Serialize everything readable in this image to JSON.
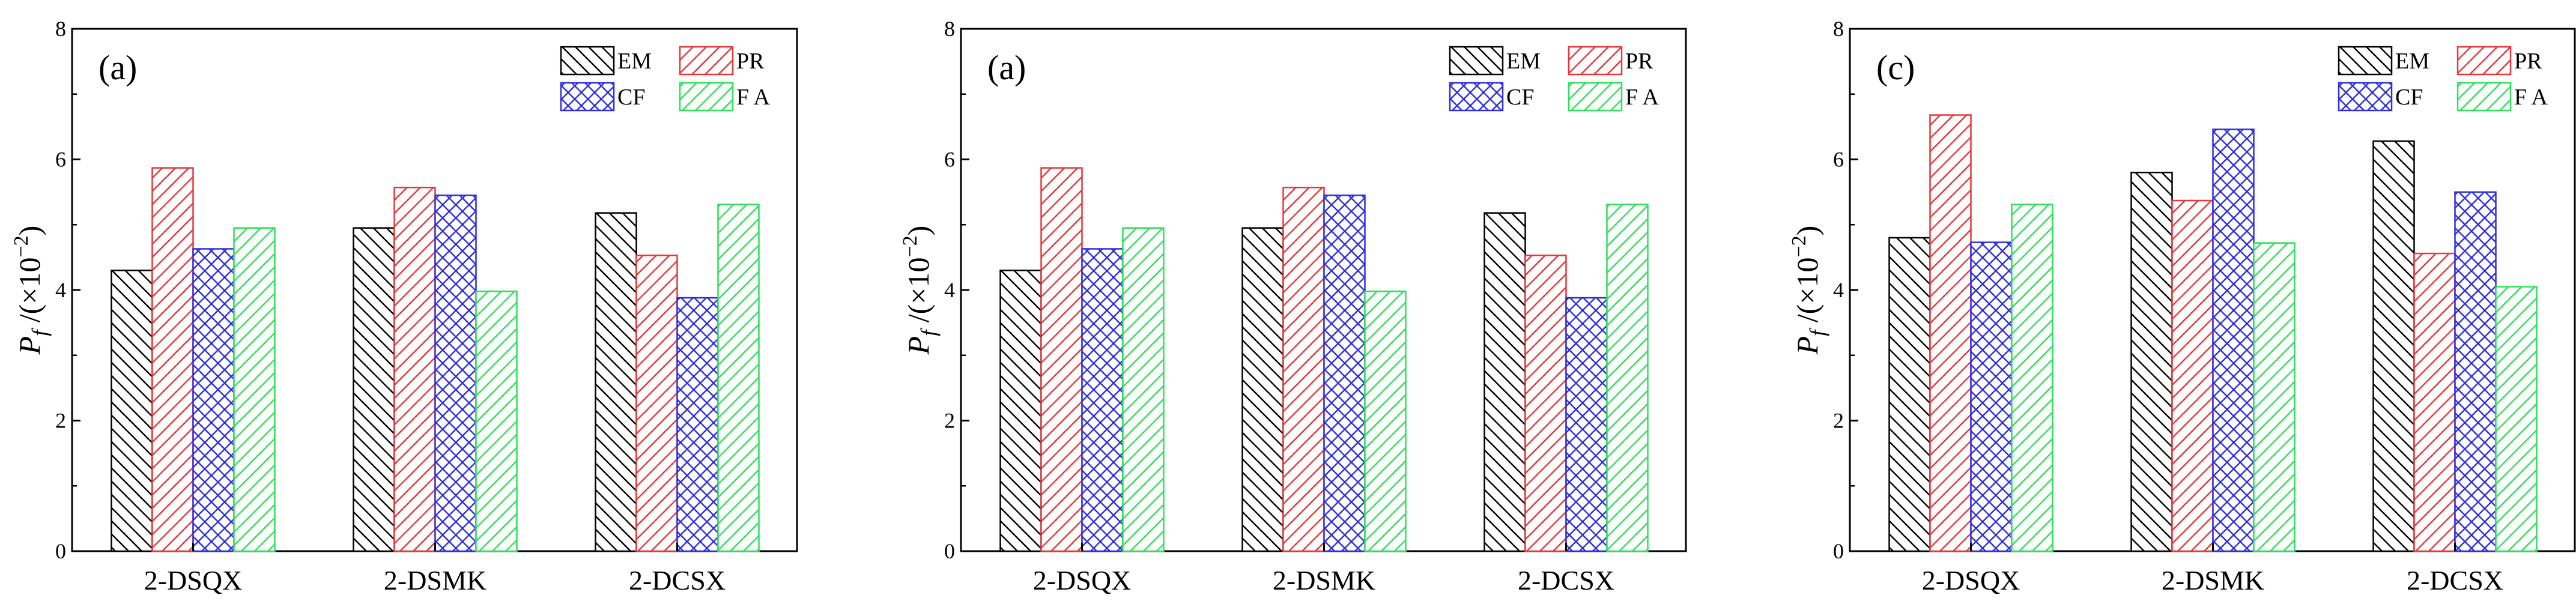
{
  "chart_data": [
    {
      "type": "bar",
      "panel_label": "(a)",
      "categories": [
        "2-DSQX",
        "2-DSMK",
        "2-DCSX"
      ],
      "series": [
        {
          "name": "EM",
          "values": [
            4.3,
            4.95,
            5.18
          ]
        },
        {
          "name": "PR",
          "values": [
            5.87,
            5.57,
            4.53
          ]
        },
        {
          "name": "CF",
          "values": [
            4.63,
            5.45,
            3.88
          ]
        },
        {
          "name": "F A",
          "values": [
            4.95,
            3.98,
            5.31
          ]
        }
      ],
      "ylabel": {
        "symbol": "P",
        "sub": "f",
        "rest": " /(×10",
        "sup": "−2",
        "close": ")"
      },
      "ylim": [
        0,
        8
      ],
      "yticks": [
        "0",
        "2",
        "4",
        "6",
        "8"
      ],
      "legend": "top-right"
    },
    {
      "type": "bar",
      "panel_label": "(a)",
      "categories": [
        "2-DSQX",
        "2-DSMK",
        "2-DCSX"
      ],
      "series": [
        {
          "name": "EM",
          "values": [
            4.3,
            4.95,
            5.18
          ]
        },
        {
          "name": "PR",
          "values": [
            5.87,
            5.57,
            4.53
          ]
        },
        {
          "name": "CF",
          "values": [
            4.63,
            5.45,
            3.88
          ]
        },
        {
          "name": "F A",
          "values": [
            4.95,
            3.98,
            5.31
          ]
        }
      ],
      "ylabel": {
        "symbol": "P",
        "sub": "f",
        "rest": " /(×10",
        "sup": "−2",
        "close": ")"
      },
      "ylim": [
        0,
        8
      ],
      "yticks": [
        "0",
        "2",
        "4",
        "6",
        "8"
      ],
      "legend": "top-right"
    },
    {
      "type": "bar",
      "panel_label": "(c)",
      "categories": [
        "2-DSQX",
        "2-DSMK",
        "2-DCSX"
      ],
      "series": [
        {
          "name": "EM",
          "values": [
            4.8,
            5.8,
            6.28
          ]
        },
        {
          "name": "PR",
          "values": [
            6.68,
            5.37,
            4.56
          ]
        },
        {
          "name": "CF",
          "values": [
            4.73,
            6.46,
            5.5
          ]
        },
        {
          "name": "F A",
          "values": [
            5.31,
            4.72,
            4.05
          ]
        }
      ],
      "ylabel": {
        "symbol": "P",
        "sub": "f",
        "rest": " /(×10",
        "sup": "−2",
        "close": ")"
      },
      "ylim": [
        0,
        8
      ],
      "yticks": [
        "0",
        "2",
        "4",
        "6",
        "8"
      ],
      "legend": "top-right"
    }
  ],
  "colors": {
    "EM": "#000000",
    "PR": "#e8363a",
    "CF": "#2e2ee0",
    "F A": "#2ee05a"
  }
}
